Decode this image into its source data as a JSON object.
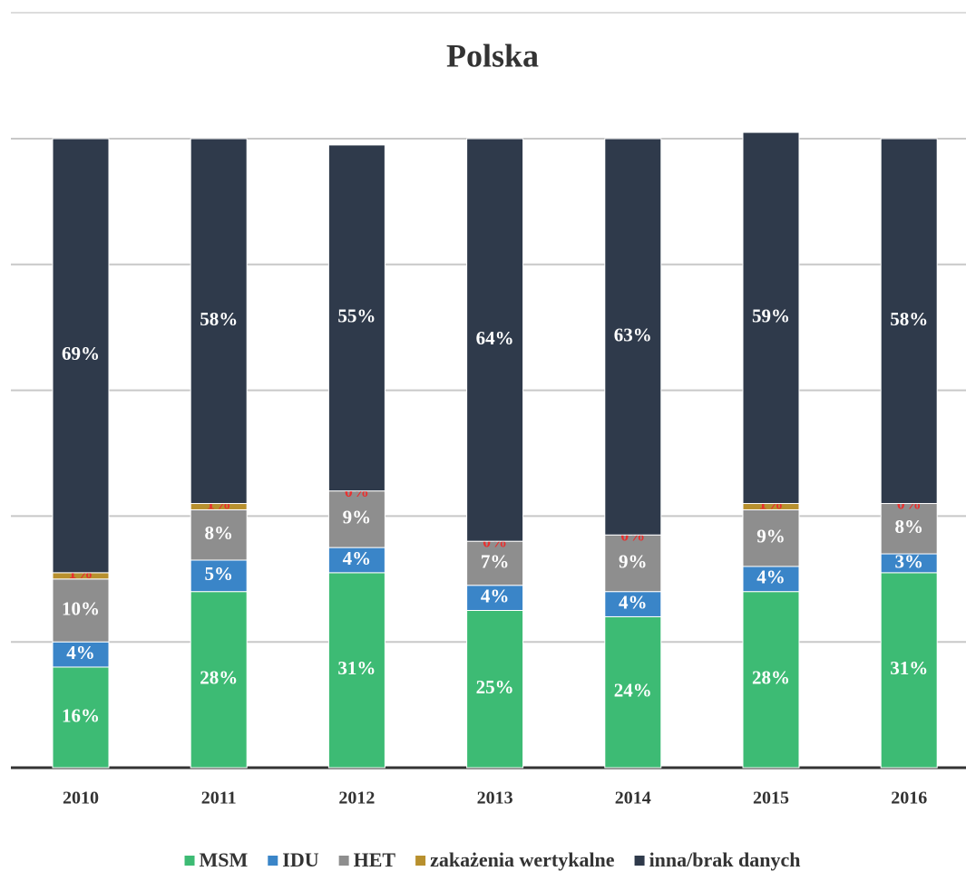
{
  "chart_data": {
    "type": "stacked_bar",
    "title": "Polska",
    "categories": [
      "2010",
      "2011",
      "2012",
      "2013",
      "2014",
      "2015",
      "2016"
    ],
    "ylim": [
      0,
      100
    ],
    "yticks": [
      20,
      40,
      60,
      80,
      100
    ],
    "grid": true,
    "series": [
      {
        "name": "MSM",
        "color": "#3dbb74",
        "values": [
          16,
          28,
          31,
          25,
          24,
          28,
          31
        ],
        "value_labels": [
          "16%",
          "28%",
          "31%",
          "25%",
          "24%",
          "28%",
          "31%"
        ]
      },
      {
        "name": "IDU",
        "color": "#3a85c8",
        "values": [
          4,
          5,
          4,
          4,
          4,
          4,
          3
        ],
        "value_labels": [
          "4%",
          "5%",
          "4%",
          "4%",
          "4%",
          "4%",
          "3%"
        ]
      },
      {
        "name": "HET",
        "color": "#8e8e8e",
        "values": [
          10,
          8,
          9,
          7,
          9,
          9,
          8
        ],
        "value_labels": [
          "10%",
          "8%",
          "9%",
          "7%",
          "9%",
          "9%",
          "8%"
        ]
      },
      {
        "name": "zakażenia wertykalne",
        "color": "#b8902e",
        "values": [
          1,
          1,
          0,
          0,
          0,
          1,
          0
        ],
        "value_labels": [
          "1%",
          "1%",
          "0%",
          "0%",
          "0%",
          "1%",
          "0%"
        ]
      },
      {
        "name": "inna/brak danych",
        "color": "#2f3a4b",
        "values": [
          69,
          58,
          55,
          64,
          63,
          59,
          58
        ],
        "value_labels": [
          "69%",
          "58%",
          "55%",
          "64%",
          "63%",
          "59%",
          "58%"
        ]
      }
    ]
  }
}
